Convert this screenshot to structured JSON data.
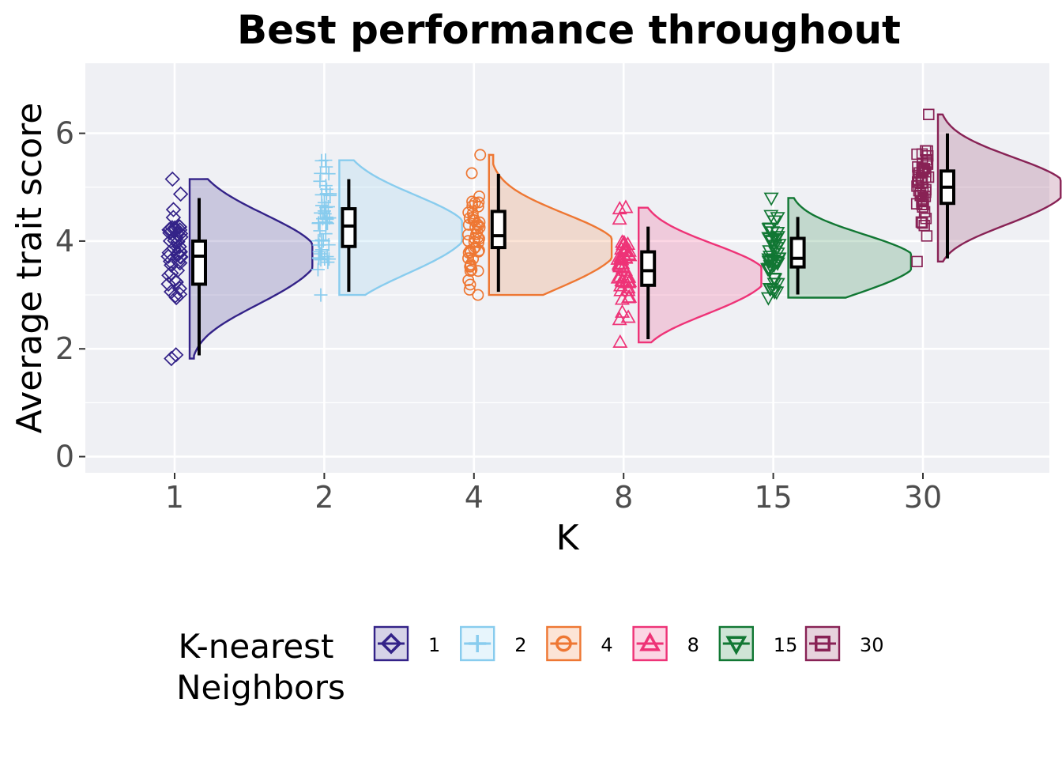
{
  "chart_data": {
    "type": "raincloud",
    "title": "Best performance throughout",
    "xlabel": "K",
    "ylabel": "Average trait score",
    "ylim": [
      -0.3,
      7.3
    ],
    "yticks": [
      0,
      2,
      4,
      6
    ],
    "grid": true,
    "legend": {
      "title_line1": "K-nearest",
      "title_line2": "Neighbors",
      "placement": "bottom"
    },
    "categories": [
      "1",
      "2",
      "4",
      "8",
      "15",
      "30"
    ],
    "series": [
      {
        "name": "1",
        "color": "#332288",
        "shape": "diamond",
        "min": 1.82,
        "q1": 3.2,
        "median": 3.72,
        "q3": 4.0,
        "max": 5.15,
        "density_peak": 3.82,
        "density_width": 1.0
      },
      {
        "name": "2",
        "color": "#88CCEE",
        "shape": "plus",
        "min": 3.0,
        "q1": 3.9,
        "median": 4.28,
        "q3": 4.6,
        "max": 5.5,
        "density_peak": 4.27,
        "density_width": 1.0
      },
      {
        "name": "4",
        "color": "#EE7733",
        "shape": "circle",
        "min": 3.0,
        "q1": 3.88,
        "median": 4.1,
        "q3": 4.55,
        "max": 5.6,
        "density_peak": 3.95,
        "density_width": 1.0
      },
      {
        "name": "8",
        "color": "#EE3377",
        "shape": "triangle-up",
        "min": 2.12,
        "q1": 3.18,
        "median": 3.45,
        "q3": 3.8,
        "max": 4.62,
        "density_peak": 3.42,
        "density_width": 1.0
      },
      {
        "name": "15",
        "color": "#117733",
        "shape": "triangle-down",
        "min": 2.95,
        "q1": 3.52,
        "median": 3.68,
        "q3": 4.05,
        "max": 4.8,
        "density_peak": 3.68,
        "density_width": 1.0
      },
      {
        "name": "30",
        "color": "#882255",
        "shape": "square",
        "min": 3.62,
        "q1": 4.7,
        "median": 5.0,
        "q3": 5.3,
        "max": 6.35,
        "density_peak": 5.05,
        "density_width": 1.0
      }
    ]
  }
}
